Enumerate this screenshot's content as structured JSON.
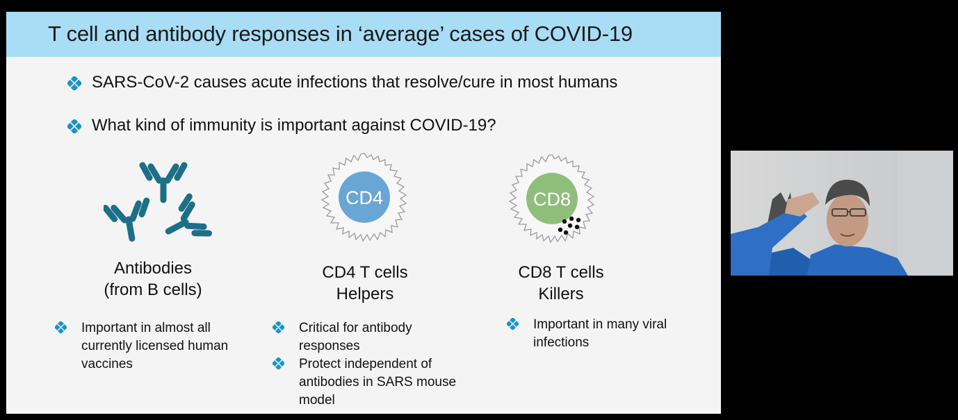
{
  "slide": {
    "title": "T cell and antibody responses in ‘average’ cases of COVID-19",
    "bullets": [
      "SARS-CoV-2 causes acute infections that resolve/cure in most humans",
      "What kind of immunity is important against COVID-19?"
    ],
    "columns": [
      {
        "line1": "Antibodies",
        "line2": "(from B cells)",
        "points": [
          "Important in almost all currently licensed human vaccines"
        ]
      },
      {
        "badge": "CD4",
        "line1": "CD4 T cells",
        "line2": "Helpers",
        "points": [
          "Critical for antibody responses",
          "Protect independent of antibodies in SARS mouse model"
        ]
      },
      {
        "badge": "CD8",
        "line1": "CD8 T cells",
        "line2": "Killers",
        "points": [
          "Important in many viral infections"
        ]
      }
    ]
  },
  "colors": {
    "title_bar": "#a9ddf6",
    "diamond": "#1a94c8",
    "antibody": "#1d6f87",
    "cd4": "#6aa6d4",
    "cd8": "#8fbe7a"
  },
  "icons": [
    "diamond-bullet-icon",
    "antibody-icon",
    "t-cell-icon",
    "webcam-video"
  ]
}
